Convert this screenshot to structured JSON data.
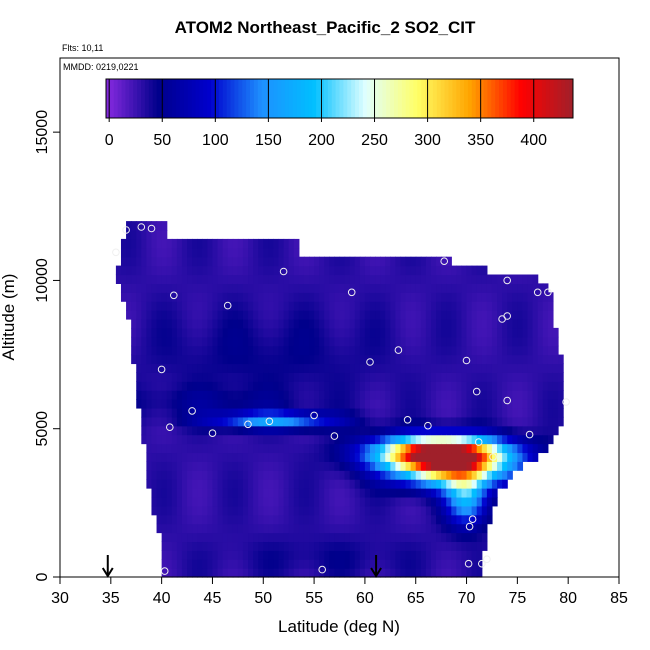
{
  "chart_data": {
    "type": "heatmap",
    "title": "ATOM2 Northeast_Pacific_2 SO2_CIT",
    "flights_label": "Flts: 10,11",
    "date_label": "MMDD: 0219,0221",
    "xlabel": "Latitude (deg N)",
    "ylabel": "Altitude (m)",
    "xlim": [
      30,
      85
    ],
    "ylim": [
      0,
      17500
    ],
    "x_ticks": [
      30,
      35,
      40,
      45,
      50,
      55,
      60,
      65,
      70,
      75,
      80,
      85
    ],
    "y_ticks": [
      0,
      5000,
      10000,
      15000
    ],
    "grid": false,
    "colorbar": {
      "placement": "top-inside",
      "range": [
        -3,
        437
      ],
      "ticks": [
        0,
        50,
        100,
        150,
        200,
        250,
        300,
        350,
        400
      ],
      "colors": [
        "#8a2be2",
        "#00008b",
        "#0000cd",
        "#1e90ff",
        "#00bfff",
        "#e0ffff",
        "#ffff66",
        "#ffa500",
        "#ff0000",
        "#a0202a"
      ]
    },
    "field_background_value": 30,
    "profile_envelope": [
      [
        36.5,
        12000
      ],
      [
        40.5,
        12000
      ],
      [
        40.5,
        11400
      ],
      [
        53.5,
        11400
      ],
      [
        53.5,
        10700
      ],
      [
        68.0,
        10700
      ],
      [
        73.5,
        10200
      ],
      [
        78.0,
        10000
      ],
      [
        79.5,
        7000
      ],
      [
        79.5,
        5200
      ],
      [
        78.5,
        4600
      ],
      [
        77.0,
        4000
      ],
      [
        75.0,
        3600
      ],
      [
        73.0,
        2800
      ],
      [
        72.0,
        1500
      ],
      [
        71.5,
        500
      ],
      [
        71.5,
        0
      ],
      [
        40.0,
        0
      ],
      [
        40.0,
        1000
      ],
      [
        39.0,
        2500
      ],
      [
        38.5,
        3800
      ],
      [
        38.0,
        5300
      ],
      [
        37.5,
        6400
      ],
      [
        37.0,
        8000
      ],
      [
        36.5,
        9200
      ],
      [
        35.5,
        10000
      ],
      [
        36.0,
        10700
      ]
    ],
    "plumes": [
      {
        "lat": 67.5,
        "alt": 4200,
        "value": 430,
        "lat_width": 6.0,
        "alt_width": 550
      },
      {
        "lat": 68.5,
        "alt": 3600,
        "value": 220,
        "lat_width": 5.5,
        "alt_width": 600
      },
      {
        "lat": 70.0,
        "alt": 2700,
        "value": 150,
        "lat_width": 2.0,
        "alt_width": 900
      },
      {
        "lat": 51.0,
        "alt": 5300,
        "value": 130,
        "lat_width": 6.0,
        "alt_width": 280
      },
      {
        "lat": 45.0,
        "alt": 5900,
        "value": 20,
        "lat_width": 8.0,
        "alt_width": 500
      },
      {
        "lat": 50.0,
        "alt": 7500,
        "value": 15,
        "lat_width": 12.0,
        "alt_width": 1500
      },
      {
        "lat": 56.0,
        "alt": 700,
        "value": 12,
        "lat_width": 10.0,
        "alt_width": 700
      }
    ],
    "sample_points": [
      [
        36.5,
        11700
      ],
      [
        38.0,
        11800
      ],
      [
        39.0,
        11750
      ],
      [
        35.5,
        10950
      ],
      [
        41.2,
        9500
      ],
      [
        52.0,
        10300
      ],
      [
        58.7,
        9600
      ],
      [
        67.8,
        10650
      ],
      [
        74.0,
        10000
      ],
      [
        77.0,
        9600
      ],
      [
        78.0,
        9600
      ],
      [
        46.5,
        9150
      ],
      [
        73.5,
        8700
      ],
      [
        74.0,
        8800
      ],
      [
        63.3,
        7650
      ],
      [
        60.5,
        7250
      ],
      [
        70.0,
        7300
      ],
      [
        40.0,
        7000
      ],
      [
        71.0,
        6250
      ],
      [
        74.0,
        5950
      ],
      [
        79.8,
        5900
      ],
      [
        43.0,
        5600
      ],
      [
        55.0,
        5450
      ],
      [
        64.2,
        5300
      ],
      [
        66.2,
        5100
      ],
      [
        40.8,
        5050
      ],
      [
        45.0,
        4850
      ],
      [
        48.5,
        5150
      ],
      [
        50.6,
        5250
      ],
      [
        57.0,
        4750
      ],
      [
        76.2,
        4800
      ],
      [
        71.2,
        4550
      ],
      [
        72.6,
        4050
      ],
      [
        70.6,
        1950
      ],
      [
        70.3,
        1700
      ],
      [
        40.3,
        200
      ],
      [
        55.8,
        250
      ],
      [
        70.2,
        450
      ],
      [
        71.5,
        450
      ],
      [
        72.0,
        600
      ]
    ],
    "arrows_lat": [
      34.7,
      61.1
    ]
  }
}
